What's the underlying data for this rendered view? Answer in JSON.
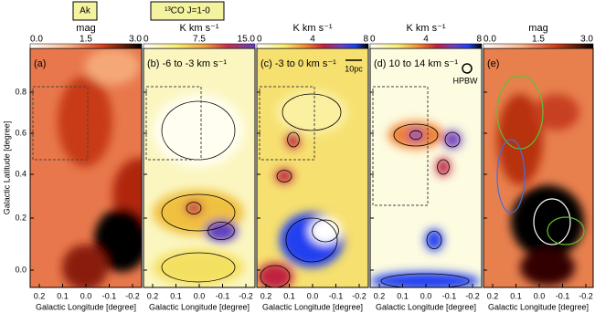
{
  "header_boxes": [
    "Ak",
    "¹³CO J=1-0"
  ],
  "y_axis": {
    "label": "Galactic Latitude [degree]",
    "ticks": [
      "0.8",
      "0.6",
      "0.4",
      "0.2",
      "0.0"
    ]
  },
  "x_axis": {
    "label": "Galactic Longitude [degree]",
    "ticks": [
      "0.2",
      "0.1",
      "0.0",
      "-0.1",
      "-0.2"
    ]
  },
  "panels": [
    {
      "label": "(a)",
      "colorbar": {
        "unit": "mag",
        "ticks": [
          "0.0",
          "1.5",
          "3.0"
        ]
      }
    },
    {
      "label": "(b) -6 to -3 km s⁻¹",
      "colorbar": {
        "unit": "K km s⁻¹",
        "ticks": [
          "0",
          "7.5",
          "15.0"
        ]
      }
    },
    {
      "label": "(c) -3 to 0 km s⁻¹",
      "colorbar": {
        "unit": "K km s⁻¹",
        "ticks": [
          "0",
          "4",
          "8"
        ]
      }
    },
    {
      "label": "(d) 10 to 14 km s⁻¹",
      "colorbar": {
        "unit": "K km s⁻¹",
        "ticks": [
          "0",
          "4",
          "8"
        ]
      }
    },
    {
      "label": "(e)",
      "colorbar": {
        "unit": "mag",
        "ticks": [
          "0.0",
          "1.5",
          "3.0"
        ]
      }
    }
  ],
  "annotations": {
    "scale": "10pc",
    "beam": "HPBW"
  }
}
